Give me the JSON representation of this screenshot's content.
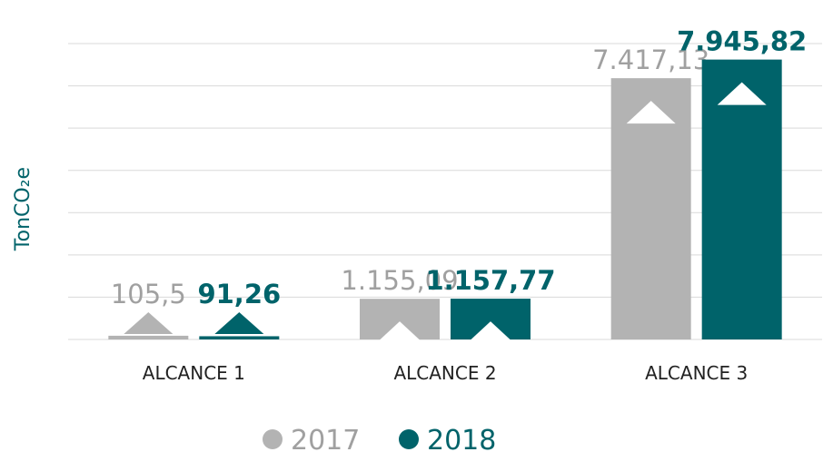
{
  "chart_data": {
    "type": "bar",
    "y_axis_label": "TonCO₂e",
    "categories": [
      "ALCANCE 1",
      "ALCANCE 2",
      "ALCANCE 3"
    ],
    "series": [
      {
        "name": "2017",
        "color": "#b3b3b3",
        "label_color": "#a0a0a0",
        "values": [
          105.5,
          1155.09,
          7417.13
        ],
        "value_labels": [
          "105,5",
          "1.155,09",
          "7.417,13"
        ]
      },
      {
        "name": "2018",
        "color": "#00636a",
        "label_color": "#00636a",
        "values": [
          91.26,
          1157.77,
          7945.82
        ],
        "value_labels": [
          "91,26",
          "1.157,77",
          "7.945,82"
        ]
      }
    ],
    "ylim": [
      0,
      8400
    ],
    "yticks": [
      0,
      1200,
      2400,
      3600,
      4800,
      6000,
      7200,
      8400
    ],
    "grid": true
  }
}
